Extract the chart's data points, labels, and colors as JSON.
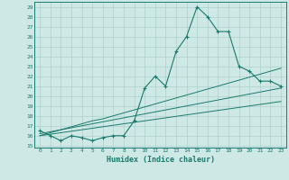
{
  "xlabel": "Humidex (Indice chaleur)",
  "x_values": [
    0,
    1,
    2,
    3,
    4,
    5,
    6,
    7,
    8,
    9,
    10,
    11,
    12,
    13,
    14,
    15,
    16,
    17,
    18,
    19,
    20,
    21,
    22,
    23
  ],
  "humidex_curve": [
    16.5,
    16.0,
    15.5,
    16.0,
    15.8,
    15.5,
    15.8,
    16.0,
    16.0,
    17.5,
    20.8,
    22.0,
    21.0,
    24.5,
    26.0,
    29.0,
    28.0,
    26.5,
    26.5,
    23.0,
    22.5,
    21.5,
    21.5,
    21.0
  ],
  "line1": [
    16.2,
    16.4,
    16.6,
    16.8,
    17.0,
    17.2,
    17.4,
    17.6,
    17.8,
    18.0,
    18.2,
    18.4,
    18.6,
    18.8,
    19.0,
    19.2,
    19.4,
    19.6,
    19.8,
    20.0,
    20.2,
    20.4,
    20.6,
    20.8
  ],
  "line2": [
    16.0,
    16.3,
    16.6,
    16.9,
    17.2,
    17.5,
    17.7,
    18.0,
    18.3,
    18.6,
    18.9,
    19.2,
    19.5,
    19.8,
    20.1,
    20.4,
    20.7,
    21.0,
    21.3,
    21.6,
    21.9,
    22.2,
    22.5,
    22.8
  ],
  "line3": [
    16.0,
    16.15,
    16.3,
    16.45,
    16.6,
    16.75,
    16.9,
    17.05,
    17.2,
    17.35,
    17.5,
    17.65,
    17.8,
    17.95,
    18.1,
    18.25,
    18.4,
    18.55,
    18.7,
    18.85,
    19.0,
    19.15,
    19.3,
    19.45
  ],
  "main_color": "#1a7a6e",
  "bg_color": "#cde8e5",
  "grid_color": "#aed0cc",
  "ylim": [
    14.8,
    29.5
  ],
  "yticks": [
    15,
    16,
    17,
    18,
    19,
    20,
    21,
    22,
    23,
    24,
    25,
    26,
    27,
    28,
    29
  ],
  "xticks": [
    0,
    1,
    2,
    3,
    4,
    5,
    6,
    7,
    8,
    9,
    10,
    11,
    12,
    13,
    14,
    15,
    16,
    17,
    18,
    19,
    20,
    21,
    22,
    23
  ]
}
